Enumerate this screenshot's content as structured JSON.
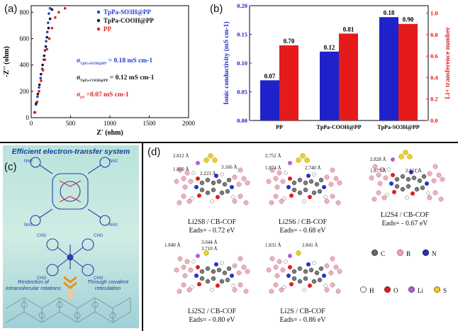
{
  "panel_a": {
    "label": "(a)",
    "chart_data": {
      "type": "scatter",
      "title": "",
      "xlabel": "Z' (ohm)",
      "ylabel": "-Z'' (ohm)",
      "xlim": [
        0,
        2000
      ],
      "ylim": [
        0,
        850
      ],
      "xticks": [
        "0",
        "500",
        "1000",
        "1500",
        "2000"
      ],
      "yticks": [
        "0",
        "200",
        "400",
        "600",
        "800"
      ],
      "series": [
        {
          "name": "TpPa-SO3H@PP",
          "color": "#1f3fcf",
          "points": [
            [
              45,
              40
            ],
            [
              60,
              100
            ],
            [
              80,
              160
            ],
            [
              100,
              230
            ],
            [
              120,
              300
            ],
            [
              140,
              370
            ],
            [
              160,
              440
            ],
            [
              175,
              510
            ],
            [
              190,
              580
            ],
            [
              205,
              650
            ],
            [
              215,
              720
            ],
            [
              225,
              790
            ],
            [
              240,
              830
            ]
          ]
        },
        {
          "name": "TpPa-COOH@PP",
          "color": "#111111",
          "points": [
            [
              45,
              40
            ],
            [
              65,
              110
            ],
            [
              85,
              180
            ],
            [
              105,
              250
            ],
            [
              125,
              330
            ],
            [
              145,
              400
            ],
            [
              165,
              470
            ],
            [
              185,
              540
            ],
            [
              200,
              610
            ],
            [
              220,
              680
            ],
            [
              240,
              750
            ],
            [
              265,
              820
            ]
          ]
        },
        {
          "name": "PP",
          "color": "#e02020",
          "points": [
            [
              50,
              40
            ],
            [
              75,
              120
            ],
            [
              100,
              200
            ],
            [
              125,
              280
            ],
            [
              150,
              360
            ],
            [
              175,
              440
            ],
            [
              200,
              520
            ],
            [
              230,
              600
            ],
            [
              265,
              680
            ],
            [
              305,
              760
            ],
            [
              350,
              800
            ],
            [
              430,
              830
            ]
          ]
        }
      ],
      "legend": [
        "TpPa-SO3H@PP",
        "TpPa-COOH@PP",
        "PP"
      ],
      "sigma_labels": [
        {
          "sym": "σ",
          "sub": "TpPa-SO3H@PP",
          "value": " = 0.18 mS cm-1",
          "color": "#1f3fcf"
        },
        {
          "sym": "σ",
          "sub": "TpPa-COOH@PP",
          "value": " = 0.12 mS cm-1",
          "color": "#111111"
        },
        {
          "sym": "σ",
          "sub": "PP",
          "value": " =0.07 mS cm-1",
          "color": "#e02020"
        }
      ]
    }
  },
  "panel_b": {
    "label": "(b)",
    "chart_data": {
      "type": "bar",
      "categories": [
        "PP",
        "TpPa-COOH@PP",
        "TpPa-SO3H@PP"
      ],
      "series": [
        {
          "name": "Ionic conductivity",
          "axis": "left",
          "color": "#1f22c8",
          "values": [
            0.07,
            0.12,
            0.18
          ],
          "labels": [
            "0.07",
            "0.12",
            "0.18"
          ]
        },
        {
          "name": "Li+ transference number",
          "axis": "right",
          "color": "#e51a1a",
          "values": [
            0.7,
            0.81,
            0.9
          ],
          "labels": [
            "0.70",
            "0.81",
            "0.90"
          ]
        }
      ],
      "ylabel_left": "Ionic conductivity (mS cm-1)",
      "ylabel_right": "Li+ transference number",
      "ylim_left": [
        0,
        0.2
      ],
      "ylim_right": [
        0,
        1.07
      ],
      "yticks_left": [
        "0.00",
        "0.05",
        "0.10",
        "0.15",
        "0.20"
      ],
      "yticks_right": [
        "0.0",
        "0.2",
        "0.4",
        "0.6",
        "0.8",
        "1.0"
      ]
    }
  },
  "panel_c": {
    "label": "(c)",
    "title": "Efficient electron-transfer system",
    "cho": "CHO",
    "nh2": "NH2",
    "arrow_left": "Restriction of intramolecular rotations",
    "arrow_right": "Through covalent reticulation"
  },
  "panel_d": {
    "label": "(d)",
    "structures": [
      {
        "species": "Li2S8 / CB-COF",
        "eads": "Eads= - 0.72 eV",
        "dists": [
          "2.812 Å",
          "1.850 Å",
          "3.166 Å",
          "2.223 Å"
        ]
      },
      {
        "species": "Li2S6 / CB-COF",
        "eads": "Eads= - 0.68 eV",
        "dists": [
          "2.752 Å",
          "1.874 Å",
          "2.740 Å"
        ]
      },
      {
        "species": "Li2S4 / CB-COF",
        "eads": "Eads= - 0.67 eV",
        "dists": [
          "2.828 Å",
          "1.873 Å",
          "2.821 Å"
        ]
      },
      {
        "species": "Li2S2 / CB-COF",
        "eads": "Eads= - 0.80 eV",
        "dists": [
          "1.840 Å",
          "3.044 Å",
          "3.710 Å"
        ]
      },
      {
        "species": "Li2S / CB-COF",
        "eads": "Eads= - 0.86 eV",
        "dists": [
          "1.831 Å",
          "2.841 Å"
        ]
      }
    ],
    "legend": [
      {
        "sym": "C",
        "color": "#6b6b6b"
      },
      {
        "sym": "B",
        "color": "#f0a8b8"
      },
      {
        "sym": "N",
        "color": "#2233cc"
      },
      {
        "sym": "H",
        "color": "#ffffff"
      },
      {
        "sym": "O",
        "color": "#e01e1e"
      },
      {
        "sym": "Li",
        "color": "#b060d0"
      },
      {
        "sym": "S",
        "color": "#f0d020"
      }
    ]
  }
}
